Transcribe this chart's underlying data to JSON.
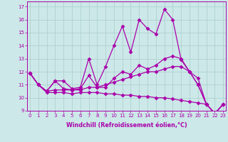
{
  "xlabel": "Windchill (Refroidissement éolien,°C)",
  "bg_color": "#cce8e8",
  "grid_color": "#aacccc",
  "line_color": "#aa00aa",
  "x_ticks": [
    0,
    1,
    2,
    3,
    4,
    5,
    6,
    7,
    8,
    9,
    10,
    11,
    12,
    13,
    14,
    15,
    16,
    17,
    18,
    19,
    20,
    21,
    22,
    23
  ],
  "ylim": [
    9,
    17.4
  ],
  "xlim": [
    -0.3,
    23.3
  ],
  "yticks": [
    9,
    10,
    11,
    12,
    13,
    14,
    15,
    16,
    17
  ],
  "series": [
    [
      11.9,
      11.0,
      10.5,
      11.3,
      11.3,
      10.7,
      10.8,
      13.0,
      11.0,
      12.4,
      14.0,
      15.5,
      13.5,
      16.0,
      15.3,
      14.9,
      16.8,
      16.0,
      12.9,
      12.0,
      11.0,
      9.5,
      8.8,
      9.5
    ],
    [
      11.9,
      11.0,
      10.5,
      11.3,
      10.7,
      10.6,
      10.7,
      11.7,
      10.8,
      10.8,
      11.5,
      12.0,
      11.8,
      12.5,
      12.2,
      12.5,
      13.0,
      13.2,
      13.0,
      12.0,
      11.0,
      9.5,
      8.8,
      9.5
    ],
    [
      11.9,
      11.0,
      10.5,
      10.6,
      10.6,
      10.6,
      10.6,
      10.8,
      10.8,
      11.0,
      11.2,
      11.4,
      11.6,
      11.8,
      12.0,
      12.0,
      12.2,
      12.4,
      12.4,
      12.0,
      11.5,
      9.5,
      8.8,
      9.5
    ],
    [
      11.9,
      11.0,
      10.4,
      10.4,
      10.4,
      10.3,
      10.4,
      10.4,
      10.4,
      10.3,
      10.3,
      10.2,
      10.2,
      10.1,
      10.1,
      10.0,
      10.0,
      9.9,
      9.8,
      9.7,
      9.6,
      9.5,
      8.8,
      9.5
    ]
  ],
  "marker": "D",
  "markersize": 2.5,
  "linewidth": 0.9,
  "tick_fontsize": 5.0,
  "label_fontsize": 5.8,
  "label_fontweight": "bold"
}
